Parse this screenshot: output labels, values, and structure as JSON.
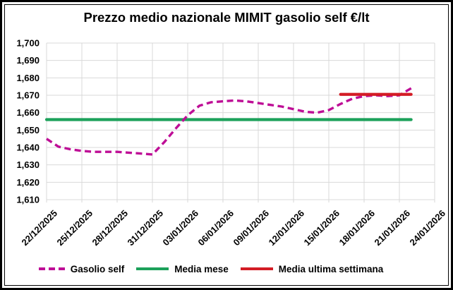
{
  "chart_data": {
    "type": "line",
    "title": "Prezzo medio nazionale MIMIT gasolio self €/lt",
    "xlabel": "",
    "ylabel": "",
    "ylim": [
      1610,
      1700
    ],
    "ytick_step": 10,
    "ytick_labels": [
      "1,700",
      "1,690",
      "1,680",
      "1,670",
      "1,660",
      "1,650",
      "1,640",
      "1,630",
      "1,620",
      "1,610"
    ],
    "x_tick_labels": [
      "22/12/2025",
      "25/12/2025",
      "28/12/2025",
      "31/12/2025",
      "03/01/2026",
      "06/01/2026",
      "09/01/2026",
      "12/01/2026",
      "15/01/2026",
      "18/01/2026",
      "21/01/2026",
      "24/01/2026"
    ],
    "x_tick_interval_days": 3,
    "x_start_date": "22/12/2025",
    "x_end_of_data": "22/01/2026",
    "grid": true,
    "legend_position": "bottom",
    "colors": {
      "grid": "#d9d9d9",
      "text": "#000000",
      "background": "#ffffff",
      "border": "#000000",
      "gasolio_self": "#be0e96",
      "media_mese": "#1ca15a",
      "media_ultima_settimana": "#d31c25"
    },
    "series": [
      {
        "name": "Gasolio self",
        "color": "#be0e96",
        "style": "dashed",
        "day_start": 0,
        "values": [
          1645,
          1640.5,
          1639,
          1638,
          1637.5,
          1637.5,
          1637.5,
          1637,
          1636.5,
          1636,
          1643,
          1651,
          1658.5,
          1664,
          1666,
          1666.5,
          1667,
          1666.5,
          1665.5,
          1664.5,
          1663.5,
          1662,
          1660.5,
          1660,
          1661.5,
          1665,
          1668,
          1669.5,
          1670,
          1669.5,
          1670,
          1674
        ]
      },
      {
        "name": "Media mese",
        "color": "#1ca15a",
        "style": "solid",
        "day_start": 0,
        "day_end": 31,
        "value": 1656
      },
      {
        "name": "Media ultima settimana",
        "color": "#d31c25",
        "style": "solid",
        "day_start": 25,
        "day_end": 31,
        "value": 1670.5
      }
    ]
  }
}
